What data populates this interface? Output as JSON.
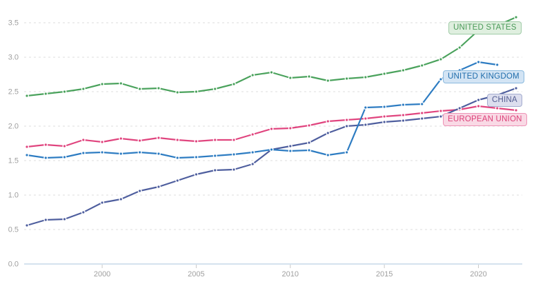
{
  "chart": {
    "y_ticks": [
      "0.0",
      "0.5",
      "1.0",
      "1.5",
      "2.0",
      "2.5",
      "3.0",
      "3.5"
    ],
    "x_ticks": [
      "2000",
      "2005",
      "2010",
      "2015",
      "2020"
    ],
    "axis_text_color": "#9f9f9f",
    "gridline_color": "#dcdcdc",
    "baseline_color": "#a9c4dc",
    "tick_mark_color": "#c9c9c9"
  },
  "chart_data": {
    "type": "line",
    "title": "",
    "xlabel": "",
    "ylabel": "",
    "xlim": [
      1996,
      2022
    ],
    "ylim": [
      0,
      3.7
    ],
    "grid": true,
    "legend_position": "right-inline-badges",
    "x": [
      1996,
      1997,
      1998,
      1999,
      2000,
      2001,
      2002,
      2003,
      2004,
      2005,
      2006,
      2007,
      2008,
      2009,
      2010,
      2011,
      2012,
      2013,
      2014,
      2015,
      2016,
      2017,
      2018,
      2019,
      2020,
      2021,
      2022
    ],
    "series": [
      {
        "name": "European Union",
        "label": "EUROPEAN UNION",
        "color": "#e0447e",
        "label_text": "#dc4078",
        "label_border": "#ee93b6",
        "label_bg": "#f9d9e5",
        "values": [
          1.7,
          1.73,
          1.71,
          1.8,
          1.77,
          1.82,
          1.79,
          1.83,
          1.8,
          1.78,
          1.8,
          1.8,
          1.88,
          1.96,
          1.97,
          2.01,
          2.07,
          2.09,
          2.11,
          2.14,
          2.16,
          2.19,
          2.22,
          2.24,
          2.29,
          2.26,
          2.23
        ]
      },
      {
        "name": "China",
        "label": "CHINA",
        "color": "#4e5e9e",
        "label_text": "#525c91",
        "label_border": "#a3abce",
        "label_bg": "#dcdeee",
        "values": [
          0.56,
          0.64,
          0.65,
          0.75,
          0.89,
          0.94,
          1.06,
          1.12,
          1.21,
          1.3,
          1.36,
          1.37,
          1.45,
          1.66,
          1.71,
          1.76,
          1.9,
          2.0,
          2.02,
          2.06,
          2.08,
          2.11,
          2.14,
          2.26,
          2.38,
          2.45,
          2.55
        ]
      },
      {
        "name": "United Kingdom",
        "label": "UNITED KINGDOM",
        "color": "#2d7cc2",
        "label_text": "#1e6cab",
        "label_border": "#8ab9de",
        "label_bg": "#d3e4f4",
        "values": [
          1.58,
          1.54,
          1.55,
          1.61,
          1.62,
          1.6,
          1.62,
          1.6,
          1.54,
          1.55,
          1.57,
          1.59,
          1.62,
          1.66,
          1.64,
          1.65,
          1.58,
          1.62,
          2.27,
          2.28,
          2.31,
          2.32,
          2.68,
          2.81,
          2.93,
          2.89,
          null
        ]
      },
      {
        "name": "United States",
        "label": "UNITED STATES",
        "color": "#4aa25c",
        "label_text": "#4a9a58",
        "label_border": "#9fcba6",
        "label_bg": "#dfefdf",
        "values": [
          2.44,
          2.47,
          2.5,
          2.54,
          2.61,
          2.62,
          2.54,
          2.55,
          2.49,
          2.5,
          2.54,
          2.61,
          2.74,
          2.78,
          2.7,
          2.72,
          2.66,
          2.69,
          2.71,
          2.76,
          2.81,
          2.88,
          2.97,
          3.14,
          3.39,
          3.46,
          3.58
        ]
      }
    ]
  }
}
